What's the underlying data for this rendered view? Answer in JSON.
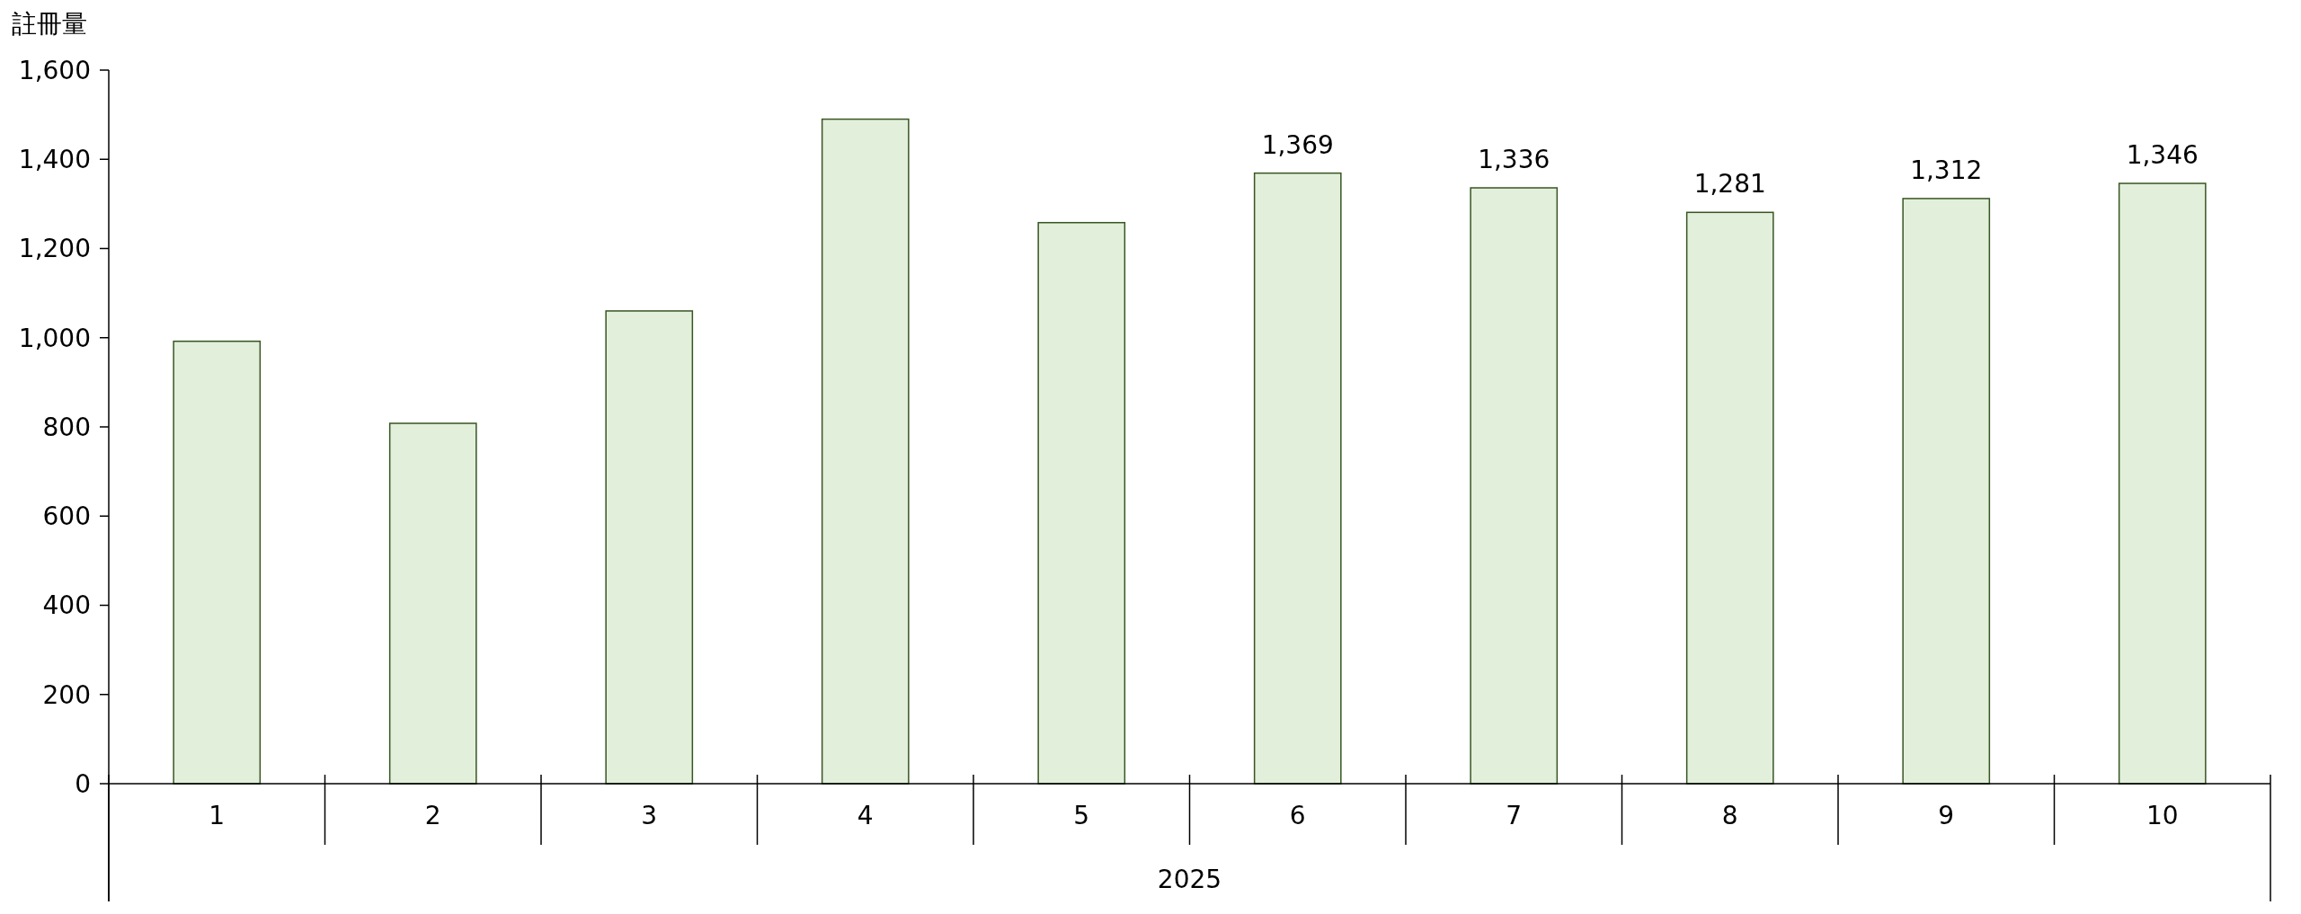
{
  "chart_data": {
    "type": "bar",
    "ylabel": "註冊量",
    "xlabel": "2025",
    "categories": [
      "1",
      "2",
      "3",
      "4",
      "5",
      "6",
      "7",
      "8",
      "9",
      "10"
    ],
    "values": [
      992,
      808,
      1060,
      1490,
      1258,
      1369,
      1336,
      1281,
      1312,
      1346
    ],
    "value_labels": [
      null,
      null,
      null,
      null,
      null,
      "1,369",
      "1,336",
      "1,281",
      "1,312",
      "1,346"
    ],
    "color": "#e2efda",
    "ylim": [
      0,
      1600
    ],
    "yticks": [
      0,
      {
        "value": 200,
        "label": "200"
      },
      {
        "value": 400,
        "label": "400"
      },
      {
        "value": 600,
        "label": "600"
      },
      {
        "value": 800,
        "label": "800"
      },
      {
        "value": 1000,
        "label": "1,000"
      },
      {
        "value": 1200,
        "label": "1,200"
      },
      {
        "value": 1400,
        "label": "1,400"
      },
      {
        "value": 1600,
        "label": "1,600"
      }
    ],
    "grid": false
  }
}
